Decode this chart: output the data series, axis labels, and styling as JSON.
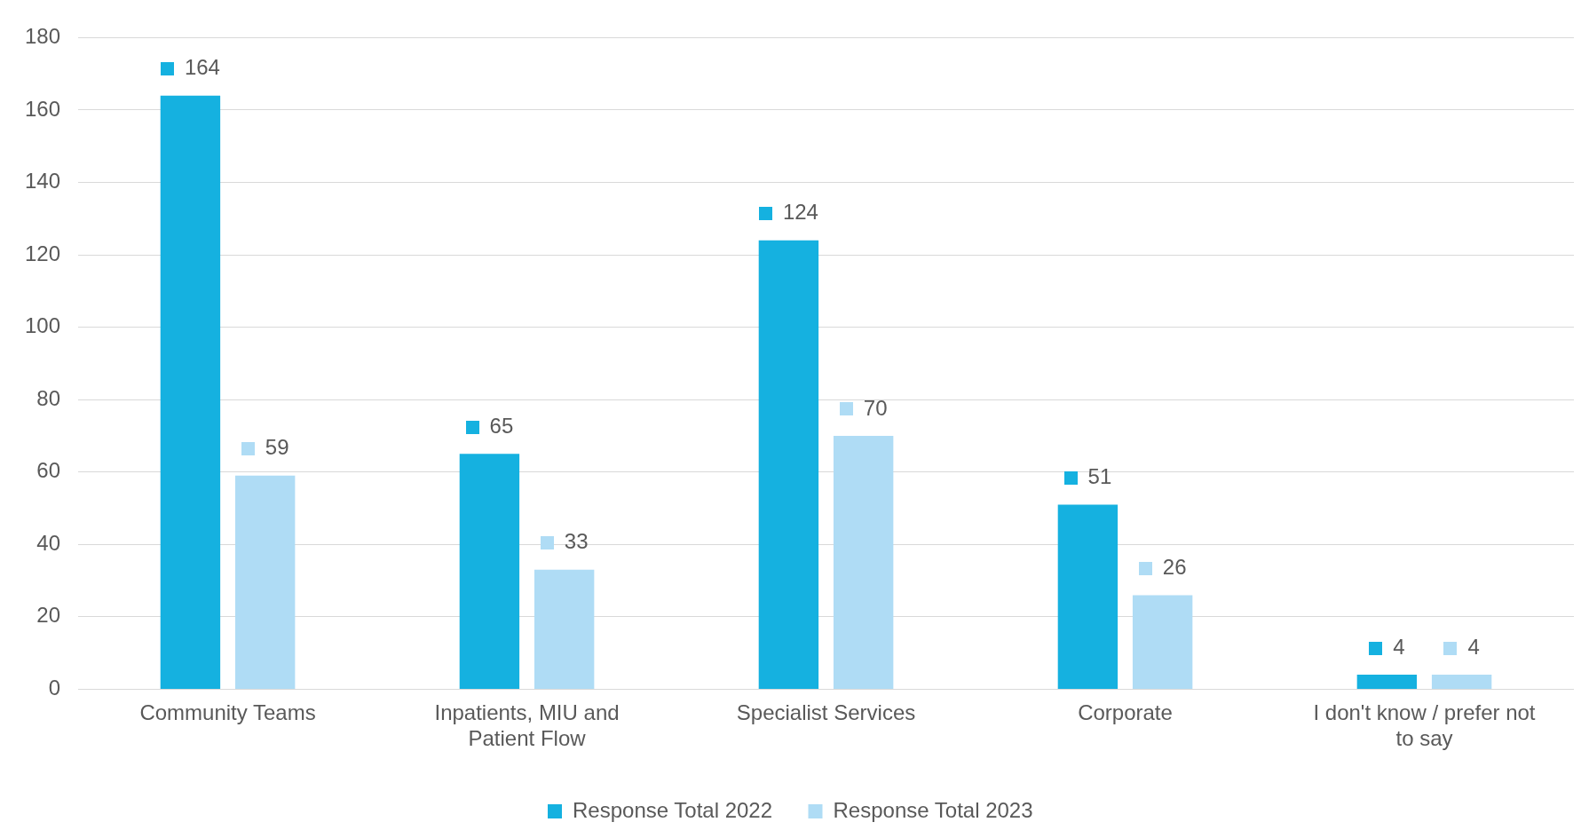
{
  "chart_data": {
    "type": "bar",
    "categories": [
      "Community Teams",
      "Inpatients, MIU and Patient Flow",
      "Specialist Services",
      "Corporate",
      "I don't know / prefer not to say"
    ],
    "series": [
      {
        "name": "Response Total 2022",
        "color": "#15b1e0",
        "values": [
          164,
          65,
          124,
          51,
          4
        ]
      },
      {
        "name": "Response Total 2023",
        "color": "#afdcf5",
        "values": [
          59,
          33,
          70,
          26,
          4
        ]
      }
    ],
    "ylim": [
      0,
      180
    ],
    "yticks": [
      0,
      20,
      40,
      60,
      80,
      100,
      120,
      140,
      160,
      180
    ],
    "grid": "y",
    "legend": "bottom",
    "data_labels": true
  }
}
